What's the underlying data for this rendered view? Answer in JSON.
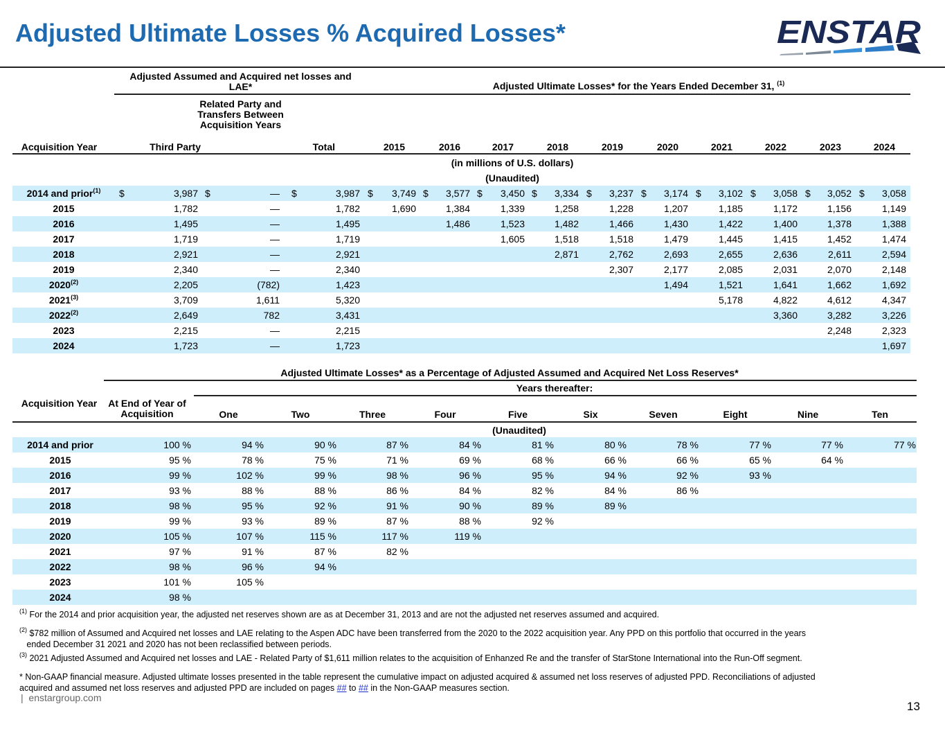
{
  "title": "Adjusted Ultimate Losses % Acquired Losses*",
  "logo_text": "ENSTAR",
  "colors": {
    "title": "#1e6ab0",
    "band": "#cfeefc",
    "logo_navy": "#1b2a55",
    "logo_blue": "#3a8fd6"
  },
  "table1": {
    "group_left": "Adjusted Assumed and Acquired net losses and LAE*",
    "group_right": "Adjusted Ultimate Losses* for the Years Ended December 31,",
    "group_right_sup": "(1)",
    "col_acq": "Acquisition Year",
    "col_third": "Third Party",
    "col_related": "Related Party and Transfers Between Acquisition Years",
    "col_total": "Total",
    "years": [
      "2015",
      "2016",
      "2017",
      "2018",
      "2019",
      "2020",
      "2021",
      "2022",
      "2023",
      "2024"
    ],
    "units": "(in millions of U.S. dollars)",
    "unaudited": "(Unaudited)",
    "rows": [
      {
        "label": "2014 and prior",
        "sup": "(1)",
        "third": "3,987",
        "related": "—",
        "total": "3,987",
        "vals": [
          "3,749",
          "3,577",
          "3,450",
          "3,334",
          "3,237",
          "3,174",
          "3,102",
          "3,058",
          "3,052",
          "3,058"
        ]
      },
      {
        "label": "2015",
        "sup": "",
        "third": "1,782",
        "related": "—",
        "total": "1,782",
        "vals": [
          "1,690",
          "1,384",
          "1,339",
          "1,258",
          "1,228",
          "1,207",
          "1,185",
          "1,172",
          "1,156",
          "1,149"
        ]
      },
      {
        "label": "2016",
        "sup": "",
        "third": "1,495",
        "related": "—",
        "total": "1,495",
        "vals": [
          "",
          "1,486",
          "1,523",
          "1,482",
          "1,466",
          "1,430",
          "1,422",
          "1,400",
          "1,378",
          "1,388"
        ]
      },
      {
        "label": "2017",
        "sup": "",
        "third": "1,719",
        "related": "—",
        "total": "1,719",
        "vals": [
          "",
          "",
          "1,605",
          "1,518",
          "1,518",
          "1,479",
          "1,445",
          "1,415",
          "1,452",
          "1,474"
        ]
      },
      {
        "label": "2018",
        "sup": "",
        "third": "2,921",
        "related": "—",
        "total": "2,921",
        "vals": [
          "",
          "",
          "",
          "2,871",
          "2,762",
          "2,693",
          "2,655",
          "2,636",
          "2,611",
          "2,594"
        ]
      },
      {
        "label": "2019",
        "sup": "",
        "third": "2,340",
        "related": "—",
        "total": "2,340",
        "vals": [
          "",
          "",
          "",
          "",
          "2,307",
          "2,177",
          "2,085",
          "2,031",
          "2,070",
          "2,148"
        ]
      },
      {
        "label": "2020",
        "sup": "(2)",
        "third": "2,205",
        "related": "(782)",
        "total": "1,423",
        "vals": [
          "",
          "",
          "",
          "",
          "",
          "1,494",
          "1,521",
          "1,641",
          "1,662",
          "1,692"
        ]
      },
      {
        "label": "2021",
        "sup": "(3)",
        "third": "3,709",
        "related": "1,611",
        "total": "5,320",
        "vals": [
          "",
          "",
          "",
          "",
          "",
          "",
          "5,178",
          "4,822",
          "4,612",
          "4,347"
        ]
      },
      {
        "label": "2022",
        "sup": "(2)",
        "third": "2,649",
        "related": "782",
        "total": "3,431",
        "vals": [
          "",
          "",
          "",
          "",
          "",
          "",
          "",
          "3,360",
          "3,282",
          "3,226"
        ]
      },
      {
        "label": "2023",
        "sup": "",
        "third": "2,215",
        "related": "—",
        "total": "2,215",
        "vals": [
          "",
          "",
          "",
          "",
          "",
          "",
          "",
          "",
          "2,248",
          "2,323"
        ]
      },
      {
        "label": "2024",
        "sup": "",
        "third": "1,723",
        "related": "—",
        "total": "1,723",
        "vals": [
          "",
          "",
          "",
          "",
          "",
          "",
          "",
          "",
          "",
          "1,697"
        ]
      }
    ]
  },
  "table2": {
    "group_title": "Adjusted Ultimate Losses*  as a Percentage of Adjusted Assumed and Acquired Net Loss Reserves*",
    "subgroup": "Years thereafter:",
    "col_acq": "Acquisition Year",
    "col_end": "At End of Year of Acquisition",
    "cols": [
      "One",
      "Two",
      "Three",
      "Four",
      "Five",
      "Six",
      "Seven",
      "Eight",
      "Nine",
      "Ten"
    ],
    "unaudited": "(Unaudited)",
    "rows": [
      {
        "label": "2014 and prior",
        "vals": [
          "100 %",
          "94 %",
          "90 %",
          "87 %",
          "84 %",
          "81 %",
          "80 %",
          "78 %",
          "77 %",
          "77 %",
          "77 %"
        ]
      },
      {
        "label": "2015",
        "vals": [
          "95 %",
          "78 %",
          "75 %",
          "71 %",
          "69 %",
          "68 %",
          "66 %",
          "66 %",
          "65 %",
          "64 %",
          ""
        ]
      },
      {
        "label": "2016",
        "vals": [
          "99 %",
          "102 %",
          "99 %",
          "98 %",
          "96 %",
          "95 %",
          "94 %",
          "92 %",
          "93 %",
          "",
          ""
        ]
      },
      {
        "label": "2017",
        "vals": [
          "93 %",
          "88 %",
          "88 %",
          "86 %",
          "84 %",
          "82 %",
          "84 %",
          "86 %",
          "",
          "",
          ""
        ]
      },
      {
        "label": "2018",
        "vals": [
          "98 %",
          "95 %",
          "92 %",
          "91 %",
          "90 %",
          "89 %",
          "89 %",
          "",
          "",
          "",
          ""
        ]
      },
      {
        "label": "2019",
        "vals": [
          "99 %",
          "93 %",
          "89 %",
          "87 %",
          "88 %",
          "92 %",
          "",
          "",
          "",
          "",
          ""
        ]
      },
      {
        "label": "2020",
        "vals": [
          "105 %",
          "107 %",
          "115 %",
          "117 %",
          "119 %",
          "",
          "",
          "",
          "",
          "",
          ""
        ]
      },
      {
        "label": "2021",
        "vals": [
          "97 %",
          "91 %",
          "87 %",
          "82 %",
          "",
          "",
          "",
          "",
          "",
          "",
          ""
        ]
      },
      {
        "label": "2022",
        "vals": [
          "98 %",
          "96 %",
          "94 %",
          "",
          "",
          "",
          "",
          "",
          "",
          "",
          ""
        ]
      },
      {
        "label": "2023",
        "vals": [
          "101 %",
          "105 %",
          "",
          "",
          "",
          "",
          "",
          "",
          "",
          "",
          ""
        ]
      },
      {
        "label": "2024",
        "vals": [
          "98 %",
          "",
          "",
          "",
          "",
          "",
          "",
          "",
          "",
          "",
          ""
        ]
      }
    ]
  },
  "footnotes": {
    "f1_sup": "(1)",
    "f1": "For the 2014 and prior acquisition year, the adjusted net reserves shown are as at December 31, 2013 and are not the adjusted net reserves assumed and acquired.",
    "f2_sup": "(2)",
    "f2_line1": "$782 million of Assumed and Acquired net losses and LAE relating to the Aspen ADC have been transferred from the 2020 to the 2022 acquisition year. Any PPD on this portfolio that occurred in the years",
    "f2_line2": "ended December 31 2021 and 2020 has not been reclassified between periods.",
    "f3_sup": "(3)",
    "f3": "2021 Adjusted Assumed and Acquired net losses and LAE - Related Party of $1,611 million relates to the acquisition of Enhanzed Re and the transfer of StarStone International into the Run-Off segment.",
    "f4_line1": "* Non-GAAP financial measure. Adjusted ultimate losses presented in the table represent the cumulative impact on adjusted acquired & assumed net loss reserves of adjusted PPD. Reconciliations of adjusted",
    "f4_pre": "acquired and assumed net loss reserves and adjusted PPD are included on pages",
    "link1": "##",
    "link_to": "to",
    "link2": "##",
    "f4_post": "in the Non-GAAP measures section."
  },
  "footer_text": "enstargroup.com",
  "footer_bar": "|",
  "page_number": "13"
}
